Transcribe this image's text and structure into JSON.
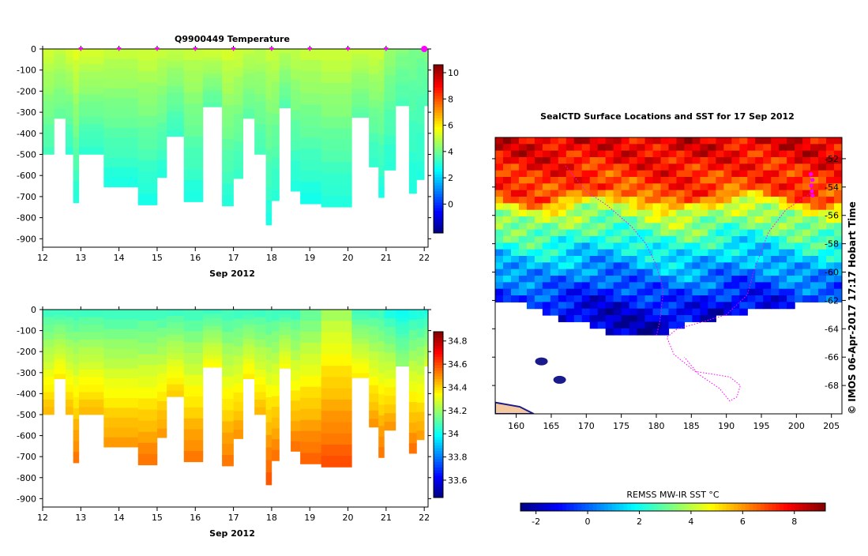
{
  "chart_data": [
    {
      "type": "heatmap",
      "title": "Q9900449  Temperature",
      "xlabel": "Sep 2012",
      "ylabel": "",
      "xlim": [
        12,
        22.1
      ],
      "ylim": [
        -940,
        0
      ],
      "x_ticks": [
        12,
        13,
        14,
        15,
        16,
        17,
        18,
        19,
        20,
        21,
        22
      ],
      "y_ticks": [
        0,
        -100,
        -200,
        -300,
        -400,
        -500,
        -600,
        -700,
        -800,
        -900
      ],
      "profile_markers": [
        13,
        14,
        15,
        16,
        17,
        18,
        19,
        20,
        21,
        22
      ],
      "colorbar": {
        "min": -2.2,
        "max": 10.6,
        "ticks": [
          10,
          8,
          6,
          4,
          2,
          0
        ],
        "palette": "jet"
      },
      "profiles": [
        {
          "x0": 12.0,
          "x1": 12.3,
          "depth": 500,
          "surface": 5.3,
          "bottom": 3.4
        },
        {
          "x0": 12.3,
          "x1": 12.6,
          "depth": 330,
          "surface": 5.1,
          "bottom": 3.8
        },
        {
          "x0": 12.6,
          "x1": 12.8,
          "depth": 500,
          "surface": 5.4,
          "bottom": 3.1
        },
        {
          "x0": 12.8,
          "x1": 12.95,
          "depth": 730,
          "surface": 5.6,
          "bottom": 3.0
        },
        {
          "x0": 12.95,
          "x1": 13.6,
          "depth": 500,
          "surface": 5.4,
          "bottom": 3.1
        },
        {
          "x0": 13.6,
          "x1": 14.5,
          "depth": 655,
          "surface": 5.2,
          "bottom": 2.9
        },
        {
          "x0": 14.5,
          "x1": 15.0,
          "depth": 740,
          "surface": 5.3,
          "bottom": 2.8
        },
        {
          "x0": 15.0,
          "x1": 15.25,
          "depth": 610,
          "surface": 5.2,
          "bottom": 3.0
        },
        {
          "x0": 15.25,
          "x1": 15.7,
          "depth": 415,
          "surface": 5.1,
          "bottom": 3.2
        },
        {
          "x0": 15.7,
          "x1": 16.2,
          "depth": 725,
          "surface": 5.2,
          "bottom": 2.9
        },
        {
          "x0": 16.2,
          "x1": 16.7,
          "depth": 275,
          "surface": 5.3,
          "bottom": 3.6
        },
        {
          "x0": 16.7,
          "x1": 17.0,
          "depth": 745,
          "surface": 5.4,
          "bottom": 3.0
        },
        {
          "x0": 17.0,
          "x1": 17.25,
          "depth": 615,
          "surface": 5.3,
          "bottom": 3.2
        },
        {
          "x0": 17.25,
          "x1": 17.55,
          "depth": 330,
          "surface": 5.1,
          "bottom": 3.7
        },
        {
          "x0": 17.55,
          "x1": 17.85,
          "depth": 500,
          "surface": 5.0,
          "bottom": 3.4
        },
        {
          "x0": 17.85,
          "x1": 18.0,
          "depth": 835,
          "surface": 5.2,
          "bottom": 2.9
        },
        {
          "x0": 18.0,
          "x1": 18.2,
          "depth": 720,
          "surface": 5.2,
          "bottom": 3.0
        },
        {
          "x0": 18.2,
          "x1": 18.5,
          "depth": 280,
          "surface": 5.0,
          "bottom": 3.6
        },
        {
          "x0": 18.5,
          "x1": 18.75,
          "depth": 675,
          "surface": 5.1,
          "bottom": 2.9
        },
        {
          "x0": 18.75,
          "x1": 19.3,
          "depth": 735,
          "surface": 5.2,
          "bottom": 2.8
        },
        {
          "x0": 19.3,
          "x1": 20.1,
          "depth": 750,
          "surface": 5.3,
          "bottom": 2.9
        },
        {
          "x0": 20.1,
          "x1": 20.55,
          "depth": 325,
          "surface": 5.2,
          "bottom": 3.7
        },
        {
          "x0": 20.55,
          "x1": 20.8,
          "depth": 560,
          "surface": 5.3,
          "bottom": 3.1
        },
        {
          "x0": 20.8,
          "x1": 20.95,
          "depth": 705,
          "surface": 5.2,
          "bottom": 2.9
        },
        {
          "x0": 20.95,
          "x1": 21.25,
          "depth": 575,
          "surface": 4.6,
          "bottom": 3.0
        },
        {
          "x0": 21.25,
          "x1": 21.6,
          "depth": 270,
          "surface": 4.3,
          "bottom": 3.5
        },
        {
          "x0": 21.6,
          "x1": 21.8,
          "depth": 685,
          "surface": 4.2,
          "bottom": 2.9
        },
        {
          "x0": 21.8,
          "x1": 22.0,
          "depth": 620,
          "surface": 4.1,
          "bottom": 3.0
        },
        {
          "x0": 22.0,
          "x1": 22.1,
          "depth": 270,
          "surface": 4.2,
          "bottom": 3.5
        }
      ]
    },
    {
      "type": "heatmap",
      "title": "",
      "xlabel": "Sep 2012",
      "ylabel": "",
      "xlim": [
        12,
        22.1
      ],
      "ylim": [
        -940,
        0
      ],
      "x_ticks": [
        12,
        13,
        14,
        15,
        16,
        17,
        18,
        19,
        20,
        21,
        22
      ],
      "y_ticks": [
        0,
        -100,
        -200,
        -300,
        -400,
        -500,
        -600,
        -700,
        -800,
        -900
      ],
      "colorbar": {
        "min": 33.45,
        "max": 34.88,
        "ticks": [
          34.8,
          34.6,
          34.4,
          34.2,
          34,
          33.8,
          33.6
        ],
        "palette": "jet"
      },
      "profiles": [
        {
          "x0": 12.0,
          "x1": 12.3,
          "depth": 500,
          "surface": 34.05,
          "bottom": 34.45
        },
        {
          "x0": 12.3,
          "x1": 12.6,
          "depth": 330,
          "surface": 34.05,
          "bottom": 34.38
        },
        {
          "x0": 12.6,
          "x1": 12.8,
          "depth": 500,
          "surface": 34.05,
          "bottom": 34.45
        },
        {
          "x0": 12.8,
          "x1": 12.95,
          "depth": 730,
          "surface": 34.05,
          "bottom": 34.55
        },
        {
          "x0": 12.95,
          "x1": 13.6,
          "depth": 500,
          "surface": 34.05,
          "bottom": 34.45
        },
        {
          "x0": 13.6,
          "x1": 14.5,
          "depth": 655,
          "surface": 34.05,
          "bottom": 34.5
        },
        {
          "x0": 14.5,
          "x1": 15.0,
          "depth": 740,
          "surface": 34.05,
          "bottom": 34.55
        },
        {
          "x0": 15.0,
          "x1": 15.25,
          "depth": 610,
          "surface": 34.05,
          "bottom": 34.5
        },
        {
          "x0": 15.25,
          "x1": 15.7,
          "depth": 415,
          "surface": 34.05,
          "bottom": 34.42
        },
        {
          "x0": 15.7,
          "x1": 16.2,
          "depth": 725,
          "surface": 34.05,
          "bottom": 34.55
        },
        {
          "x0": 16.2,
          "x1": 16.7,
          "depth": 275,
          "surface": 34.05,
          "bottom": 34.35
        },
        {
          "x0": 16.7,
          "x1": 17.0,
          "depth": 745,
          "surface": 34.05,
          "bottom": 34.55
        },
        {
          "x0": 17.0,
          "x1": 17.25,
          "depth": 615,
          "surface": 34.05,
          "bottom": 34.5
        },
        {
          "x0": 17.25,
          "x1": 17.55,
          "depth": 330,
          "surface": 34.05,
          "bottom": 34.38
        },
        {
          "x0": 17.55,
          "x1": 17.85,
          "depth": 500,
          "surface": 34.05,
          "bottom": 34.45
        },
        {
          "x0": 17.85,
          "x1": 18.0,
          "depth": 835,
          "surface": 34.05,
          "bottom": 34.6
        },
        {
          "x0": 18.0,
          "x1": 18.2,
          "depth": 720,
          "surface": 34.05,
          "bottom": 34.55
        },
        {
          "x0": 18.2,
          "x1": 18.5,
          "depth": 280,
          "surface": 34.05,
          "bottom": 34.35
        },
        {
          "x0": 18.5,
          "x1": 18.75,
          "depth": 675,
          "surface": 34.05,
          "bottom": 34.55
        },
        {
          "x0": 18.75,
          "x1": 19.3,
          "depth": 735,
          "surface": 34.1,
          "bottom": 34.58
        },
        {
          "x0": 19.3,
          "x1": 20.1,
          "depth": 750,
          "surface": 34.2,
          "bottom": 34.6
        },
        {
          "x0": 20.1,
          "x1": 20.55,
          "depth": 325,
          "surface": 34.05,
          "bottom": 34.38
        },
        {
          "x0": 20.55,
          "x1": 20.8,
          "depth": 560,
          "surface": 34.05,
          "bottom": 34.5
        },
        {
          "x0": 20.8,
          "x1": 20.95,
          "depth": 705,
          "surface": 34.05,
          "bottom": 34.55
        },
        {
          "x0": 20.95,
          "x1": 21.25,
          "depth": 575,
          "surface": 34.0,
          "bottom": 34.5
        },
        {
          "x0": 21.25,
          "x1": 21.6,
          "depth": 270,
          "surface": 33.98,
          "bottom": 34.2
        },
        {
          "x0": 21.6,
          "x1": 21.8,
          "depth": 685,
          "surface": 34.0,
          "bottom": 34.55
        },
        {
          "x0": 21.8,
          "x1": 22.0,
          "depth": 620,
          "surface": 34.0,
          "bottom": 34.5
        },
        {
          "x0": 22.0,
          "x1": 22.1,
          "depth": 270,
          "surface": 34.0,
          "bottom": 34.3
        }
      ]
    },
    {
      "type": "heatmap",
      "title": "SealCTD Surface Locations and SST for 17 Sep 2012",
      "xlabel": "",
      "ylabel": "",
      "xlim": [
        157,
        206.5
      ],
      "ylim": [
        -70,
        -50.5
      ],
      "x_ticks": [
        160,
        165,
        170,
        175,
        180,
        185,
        190,
        195,
        200,
        205
      ],
      "y_ticks": [
        -52,
        -54,
        -56,
        -58,
        -60,
        -62,
        -64,
        -66,
        -68
      ],
      "colorbar_label": "REMSS MW-IR SST °C",
      "colorbar": {
        "min": -2.6,
        "max": 9.2,
        "ticks": [
          -2,
          0,
          2,
          4,
          6,
          8
        ],
        "palette": "jet"
      },
      "ice_edge_lat": [
        -62.3,
        -62.3,
        -62.6,
        -62.9,
        -63.3,
        -63.6,
        -64.1,
        -64.5,
        -64.6,
        -64.5,
        -64.3,
        -64.0,
        -63.7,
        -63.5,
        -63.2,
        -63.0,
        -62.8,
        -62.6,
        -62.4,
        -62.2,
        -62.0,
        -61.9
      ],
      "sst_bands": [
        {
          "lat": -51.0,
          "t": 8.0
        },
        {
          "lat": -54.5,
          "t": 6.8
        },
        {
          "lat": -55.5,
          "t": 4.2
        },
        {
          "lat": -57.0,
          "t": 3.0
        },
        {
          "lat": -58.5,
          "t": 1.6
        },
        {
          "lat": -60.5,
          "t": 0.2
        },
        {
          "lat": -62.5,
          "t": -1.2
        },
        {
          "lat": -64.0,
          "t": -1.9
        }
      ],
      "track": [
        [
          201.8,
          -53.0
        ],
        [
          202.3,
          -53.9
        ],
        [
          202.2,
          -54.4
        ],
        [
          198.5,
          -55.6
        ],
        [
          196.0,
          -57.2
        ],
        [
          194.0,
          -59.8
        ],
        [
          193.0,
          -61.6
        ],
        [
          190.0,
          -63.0
        ],
        [
          186.0,
          -63.6
        ],
        [
          183.0,
          -64.0
        ],
        [
          181.5,
          -64.6
        ],
        [
          182.5,
          -65.8
        ],
        [
          185.5,
          -67.0
        ],
        [
          190.5,
          -67.4
        ],
        [
          192.0,
          -68.0
        ],
        [
          191.5,
          -68.8
        ],
        [
          190.5,
          -69.1
        ],
        [
          189.0,
          -68.2
        ],
        [
          186.0,
          -67.2
        ],
        [
          184.0,
          -66.0
        ]
      ],
      "track2": [
        [
          167.0,
          -52.5
        ],
        [
          170.0,
          -54.3
        ],
        [
          173.0,
          -55.3
        ],
        [
          176.5,
          -56.8
        ],
        [
          178.5,
          -58.0
        ],
        [
          180.0,
          -59.5
        ],
        [
          181.0,
          -61.3
        ],
        [
          180.5,
          -63.5
        ],
        [
          180.0,
          -64.5
        ]
      ],
      "surface_locations": [
        [
          202.1,
          -53.1
        ],
        [
          202.3,
          -53.5
        ],
        [
          202.1,
          -53.9
        ],
        [
          202.2,
          -54.3
        ],
        [
          202.3,
          -54.6
        ]
      ],
      "islands": [
        {
          "lon": 163.6,
          "lat": -66.3
        },
        {
          "lon": 166.2,
          "lat": -67.6
        }
      ]
    }
  ],
  "footer_text": "© IMOS 06-Apr-2017 17:17 Hobart Time",
  "colors": {
    "profile_marker": "#ff00ff",
    "track": "#ff00ff",
    "land": "#f5c9a0",
    "ice": "#ffffff"
  }
}
